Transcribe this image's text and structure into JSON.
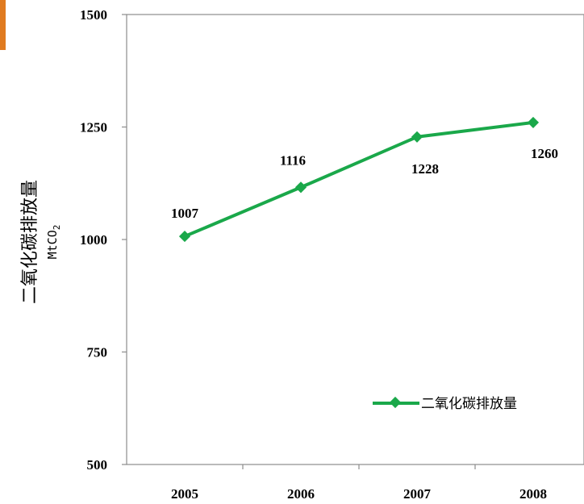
{
  "chart_data": {
    "type": "line",
    "categories": [
      "2005",
      "2006",
      "2007",
      "2008"
    ],
    "series": [
      {
        "name": "二氧化碳排放量",
        "values": [
          1007,
          1116,
          1228,
          1260
        ],
        "color": "#1aa84a"
      }
    ],
    "ylabel": "二氧化碳排放量",
    "yunit": "MtCO",
    "yunit_subscript": "2",
    "ylim": [
      500,
      1500
    ],
    "yticks": [
      "500",
      "750",
      "1000",
      "1250",
      "1500"
    ],
    "grid": false,
    "legend_position": "bottom-right",
    "accent_color": "#e07b20"
  }
}
